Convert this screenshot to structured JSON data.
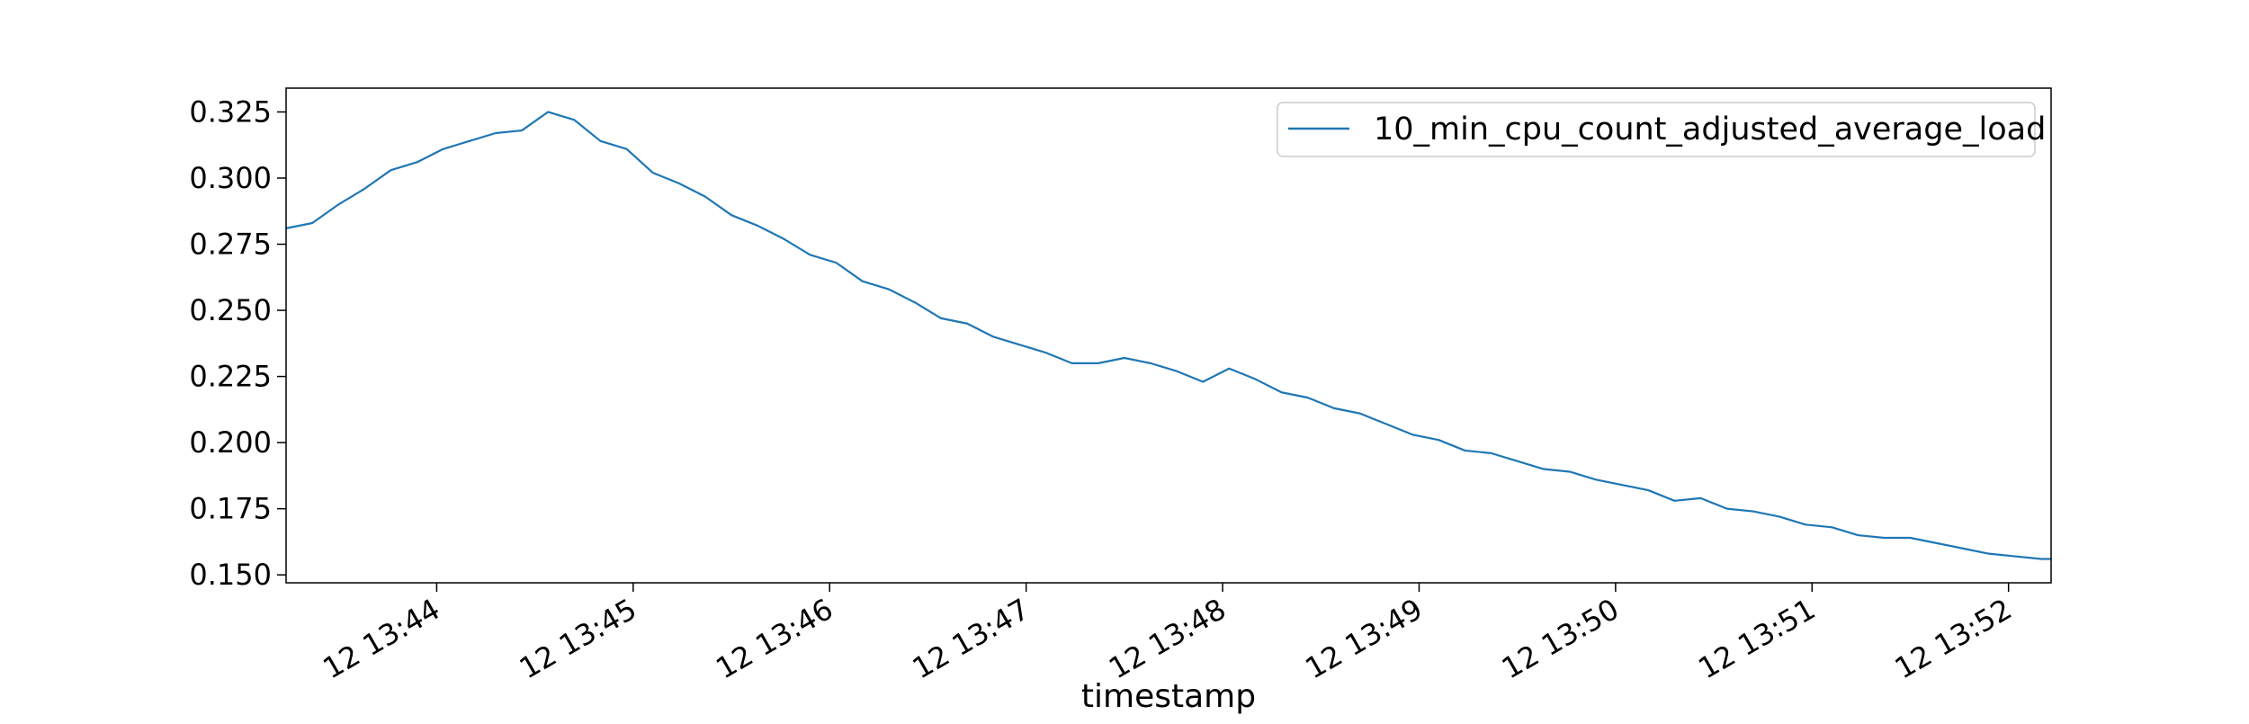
{
  "chart_data": {
    "type": "line",
    "title": "",
    "xlabel": "timestamp",
    "ylabel": "",
    "x_ticks": [
      "12 13:44",
      "12 13:45",
      "12 13:46",
      "12 13:47",
      "12 13:48",
      "12 13:49",
      "12 13:50",
      "12 13:51",
      "12 13:52"
    ],
    "y_ticks": [
      "0.150",
      "0.175",
      "0.200",
      "0.225",
      "0.250",
      "0.275",
      "0.300",
      "0.325"
    ],
    "xlim": [
      "13:43:14",
      "13:52:13"
    ],
    "ylim": [
      0.147,
      0.334
    ],
    "grid": false,
    "legend_position": "top-right",
    "series": [
      {
        "name": "10_min_cpu_count_adjusted_average_load",
        "color": "#1f77b4",
        "x": [
          "13:43:14",
          "13:43:22",
          "13:43:30",
          "13:43:38",
          "13:43:46",
          "13:43:54",
          "13:44:02",
          "13:44:10",
          "13:44:18",
          "13:44:26",
          "13:44:34",
          "13:44:42",
          "13:44:50",
          "13:44:58",
          "13:45:06",
          "13:45:14",
          "13:45:22",
          "13:45:30",
          "13:45:38",
          "13:45:46",
          "13:45:54",
          "13:46:02",
          "13:46:10",
          "13:46:18",
          "13:46:26",
          "13:46:34",
          "13:46:42",
          "13:46:50",
          "13:46:58",
          "13:47:06",
          "13:47:14",
          "13:47:22",
          "13:47:30",
          "13:47:38",
          "13:47:46",
          "13:47:54",
          "13:48:02",
          "13:48:10",
          "13:48:18",
          "13:48:26",
          "13:48:34",
          "13:48:42",
          "13:48:50",
          "13:48:58",
          "13:49:06",
          "13:49:14",
          "13:49:22",
          "13:49:30",
          "13:49:38",
          "13:49:46",
          "13:49:54",
          "13:50:02",
          "13:50:10",
          "13:50:18",
          "13:50:26",
          "13:50:34",
          "13:50:42",
          "13:50:50",
          "13:50:58",
          "13:51:06",
          "13:51:14",
          "13:51:22",
          "13:51:30",
          "13:51:38",
          "13:51:46",
          "13:51:54",
          "13:52:02",
          "13:52:10",
          "13:52:13"
        ],
        "y": [
          0.281,
          0.283,
          0.29,
          0.296,
          0.303,
          0.306,
          0.311,
          0.314,
          0.317,
          0.318,
          0.325,
          0.322,
          0.314,
          0.311,
          0.302,
          0.298,
          0.293,
          0.286,
          0.282,
          0.277,
          0.271,
          0.268,
          0.261,
          0.258,
          0.253,
          0.247,
          0.245,
          0.24,
          0.237,
          0.234,
          0.23,
          0.23,
          0.232,
          0.23,
          0.227,
          0.223,
          0.228,
          0.224,
          0.219,
          0.217,
          0.213,
          0.211,
          0.207,
          0.203,
          0.201,
          0.197,
          0.196,
          0.193,
          0.19,
          0.189,
          0.186,
          0.184,
          0.182,
          0.178,
          0.179,
          0.175,
          0.174,
          0.172,
          0.169,
          0.168,
          0.165,
          0.164,
          0.164,
          0.162,
          0.16,
          0.158,
          0.157,
          0.156,
          0.156
        ]
      }
    ]
  }
}
